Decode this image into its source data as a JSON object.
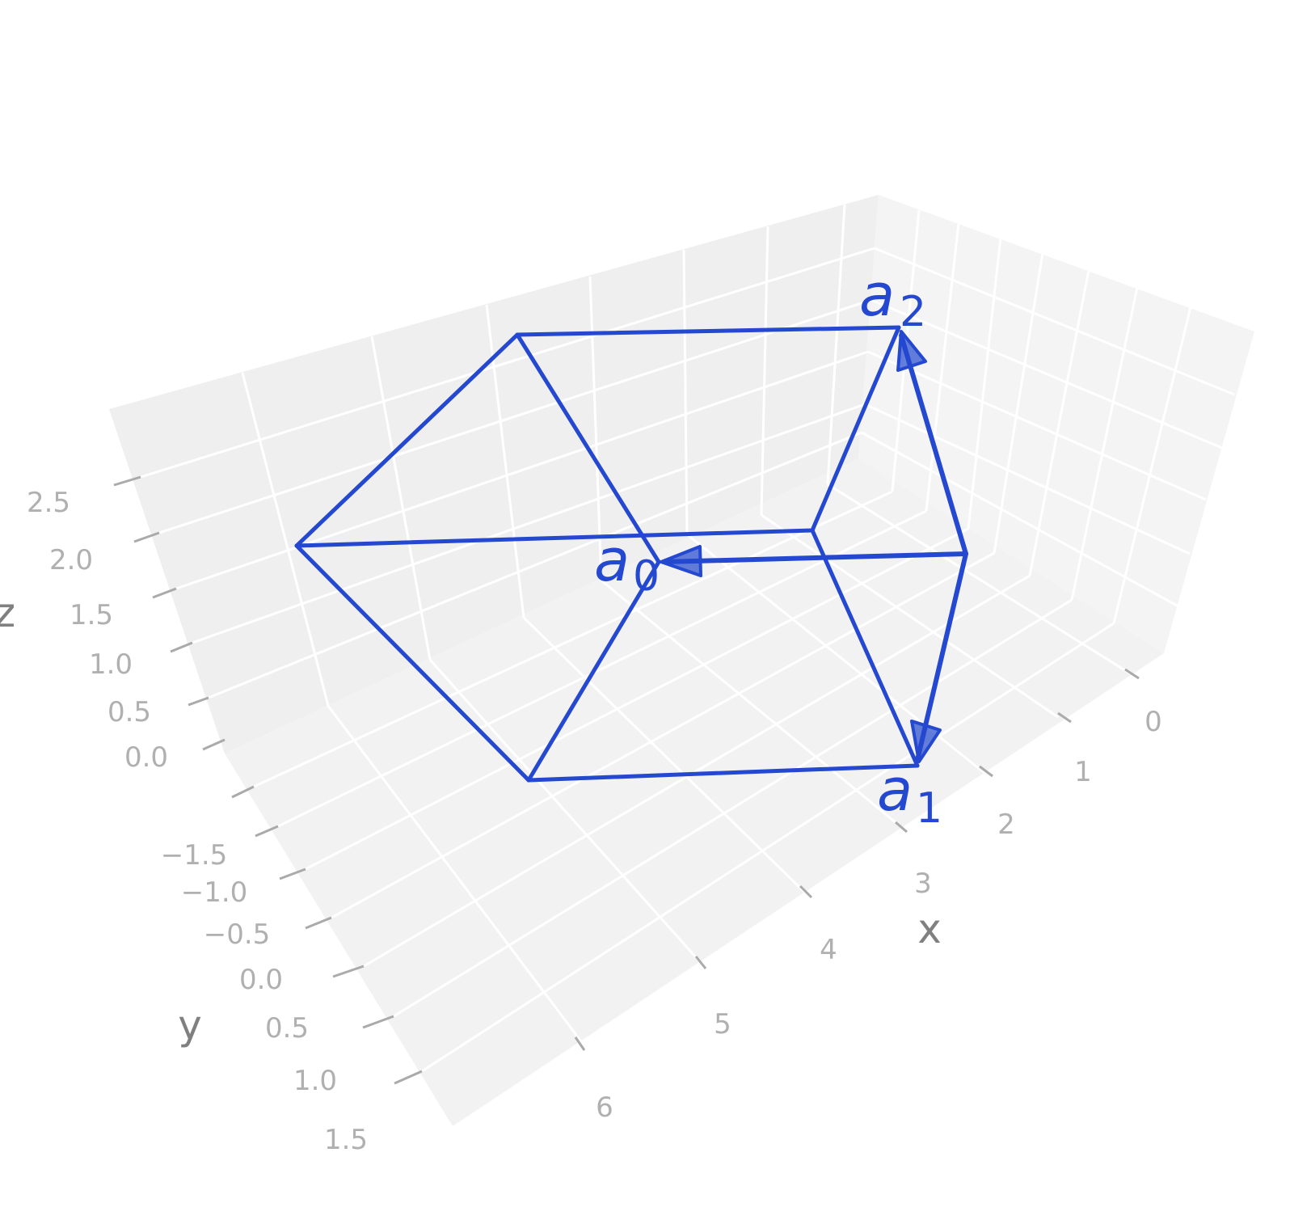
{
  "axes": {
    "x_label": "x",
    "y_label": "y",
    "z_label": "z",
    "x_ticks": [
      "0",
      "1",
      "2",
      "3",
      "4",
      "5",
      "6"
    ],
    "y_ticks": [
      "−1.5",
      "−1.0",
      "−0.5",
      "0.0",
      "0.5",
      "1.0",
      "1.5"
    ],
    "z_ticks": [
      "0.0",
      "0.5",
      "1.0",
      "1.5",
      "2.0",
      "2.5"
    ]
  },
  "vectors": [
    {
      "main": "a",
      "sub": "0"
    },
    {
      "main": "a",
      "sub": "1"
    },
    {
      "main": "a",
      "sub": "2"
    }
  ],
  "colors": {
    "pane_back": "#efefef",
    "pane_side": "#f4f4f4",
    "pane_floor": "#f2f2f2",
    "grid": "#ffffff",
    "edge": "#2448cf",
    "tick_text": "#b0b0b0",
    "axis_text": "#808080"
  }
}
